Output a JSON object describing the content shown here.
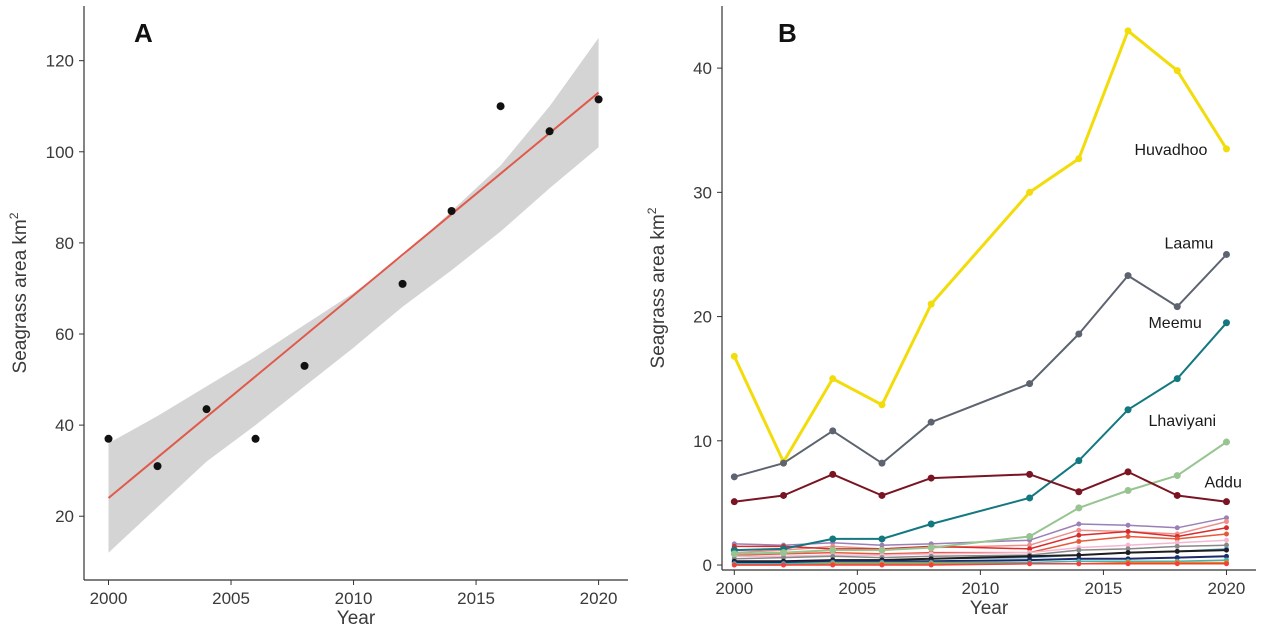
{
  "chart_data": [
    {
      "type": "scatter",
      "panel_label": "A",
      "xlabel": "Year",
      "ylabel_base": "Seagrass area km",
      "ylabel_sup": "2",
      "xlim": [
        1999,
        2021.2
      ],
      "ylim": [
        6,
        132
      ],
      "x_ticks": [
        2000,
        2005,
        2010,
        2015,
        2020
      ],
      "y_ticks": [
        20,
        40,
        60,
        80,
        100,
        120
      ],
      "grid": false,
      "points": {
        "x": [
          2000,
          2002,
          2004,
          2006,
          2008,
          2012,
          2014,
          2016,
          2018,
          2020
        ],
        "y": [
          37,
          31,
          43.5,
          37,
          53,
          71,
          87,
          110,
          104.5,
          111.5
        ]
      },
      "fit": {
        "x": [
          2000,
          2020
        ],
        "y": [
          24,
          113
        ],
        "color": "#e0594a",
        "ci_color": "#d4d4d4",
        "ci_upper": [
          [
            2000,
            36
          ],
          [
            2002,
            42
          ],
          [
            2004,
            48.5
          ],
          [
            2006,
            55
          ],
          [
            2008,
            62
          ],
          [
            2010,
            69
          ],
          [
            2012,
            77
          ],
          [
            2014,
            87
          ],
          [
            2016,
            97
          ],
          [
            2018,
            110
          ],
          [
            2020,
            125
          ]
        ],
        "ci_lower": [
          [
            2000,
            12
          ],
          [
            2002,
            22
          ],
          [
            2004,
            32
          ],
          [
            2006,
            40
          ],
          [
            2008,
            48.5
          ],
          [
            2010,
            57
          ],
          [
            2012,
            66
          ],
          [
            2014,
            74
          ],
          [
            2016,
            82.5
          ],
          [
            2018,
            92
          ],
          [
            2020,
            101
          ]
        ]
      },
      "point_color": "#111111"
    },
    {
      "type": "line",
      "panel_label": "B",
      "xlabel": "Year",
      "ylabel_base": "Seagrass area km",
      "ylabel_sup": "2",
      "xlim": [
        1999.5,
        2021.2
      ],
      "ylim": [
        -0.4,
        45
      ],
      "x_ticks": [
        2000,
        2005,
        2010,
        2015,
        2020
      ],
      "y_ticks": [
        0,
        10,
        20,
        30,
        40
      ],
      "grid": false,
      "x": [
        2000,
        2002,
        2004,
        2006,
        2008,
        2012,
        2014,
        2016,
        2018,
        2020
      ],
      "series": [
        {
          "name": "Huvadhoo",
          "color": "#f2dc0a",
          "width": 3,
          "values": [
            16.8,
            8.3,
            15,
            12.9,
            21,
            30,
            32.7,
            43,
            39.8,
            33.5
          ]
        },
        {
          "name": "Laamu",
          "color": "#5d6470",
          "width": 2,
          "values": [
            7.1,
            8.2,
            10.8,
            8.2,
            11.5,
            14.6,
            18.6,
            23.3,
            20.8,
            25
          ]
        },
        {
          "name": "Meemu",
          "color": "#137880",
          "width": 2,
          "values": [
            1.2,
            1.3,
            2.1,
            2.1,
            3.3,
            5.4,
            8.4,
            12.5,
            15,
            19.5
          ]
        },
        {
          "name": "Lhaviyani",
          "color": "#97c491",
          "width": 2,
          "values": [
            0.9,
            1.0,
            1.2,
            1.2,
            1.4,
            2.3,
            4.6,
            6.0,
            7.2,
            9.9
          ]
        },
        {
          "name": "Addu",
          "color": "#7a1422",
          "width": 2,
          "values": [
            5.1,
            5.6,
            7.3,
            5.6,
            7.0,
            7.3,
            5.9,
            7.5,
            5.6,
            5.1
          ]
        },
        {
          "name": "",
          "color": "#9b7fb6",
          "width": 1.5,
          "values": [
            1.7,
            1.6,
            1.8,
            1.6,
            1.7,
            2.0,
            3.3,
            3.2,
            3.0,
            3.8
          ]
        },
        {
          "name": "",
          "color": "#ee8f8c",
          "width": 1.5,
          "values": [
            1.0,
            1.2,
            1.5,
            1.3,
            1.4,
            1.6,
            2.8,
            2.7,
            2.5,
            3.5
          ]
        },
        {
          "name": "",
          "color": "#d92c2c",
          "width": 1.5,
          "values": [
            1.5,
            1.5,
            1.3,
            1.3,
            1.5,
            1.3,
            2.4,
            2.7,
            2.3,
            3.0
          ]
        },
        {
          "name": "",
          "color": "#e55b3a",
          "width": 1.5,
          "values": [
            0.8,
            0.9,
            1.0,
            0.9,
            1.0,
            1.0,
            1.9,
            2.3,
            2.1,
            2.5
          ]
        },
        {
          "name": "",
          "color": "#f7b6d2",
          "width": 1.5,
          "values": [
            0.7,
            0.7,
            0.8,
            0.8,
            0.9,
            1.0,
            1.4,
            1.6,
            1.8,
            2.0
          ]
        },
        {
          "name": "",
          "color": "#888888",
          "width": 1.5,
          "values": [
            0.5,
            0.6,
            0.7,
            0.6,
            0.7,
            0.8,
            1.2,
            1.3,
            1.5,
            1.6
          ]
        },
        {
          "name": "",
          "color": "#59a3c9",
          "width": 1.5,
          "values": [
            0.3,
            0.3,
            0.4,
            0.4,
            0.5,
            0.6,
            0.8,
            1.0,
            1.1,
            1.3
          ]
        },
        {
          "name": "",
          "color": "#1e1e1e",
          "width": 2,
          "values": [
            0.3,
            0.3,
            0.4,
            0.4,
            0.5,
            0.7,
            0.8,
            1.0,
            1.1,
            1.2
          ]
        },
        {
          "name": "",
          "color": "#1f2a6b",
          "width": 2,
          "values": [
            0.2,
            0.2,
            0.3,
            0.3,
            0.3,
            0.4,
            0.5,
            0.5,
            0.6,
            0.7
          ]
        },
        {
          "name": "",
          "color": "#3fb7b0",
          "width": 1.5,
          "values": [
            0.1,
            0.1,
            0.2,
            0.2,
            0.2,
            0.2,
            0.3,
            0.3,
            0.3,
            0.4
          ]
        },
        {
          "name": "",
          "color": "#e08a1e",
          "width": 1.5,
          "values": [
            0.0,
            0.0,
            0.1,
            0.1,
            0.1,
            0.1,
            0.1,
            0.2,
            0.2,
            0.2
          ]
        },
        {
          "name": "",
          "color": "#f04040",
          "width": 1.5,
          "values": [
            0.0,
            0.0,
            0.0,
            0.0,
            0.0,
            0.1,
            0.1,
            0.1,
            0.1,
            0.1
          ]
        }
      ],
      "labels": [
        {
          "text": "Huvadhoo",
          "series": 0
        },
        {
          "text": "Laamu",
          "series": 1
        },
        {
          "text": "Meemu",
          "series": 2
        },
        {
          "text": "Lhaviyani",
          "series": 3
        },
        {
          "text": "Addu",
          "series": 4
        }
      ]
    }
  ]
}
